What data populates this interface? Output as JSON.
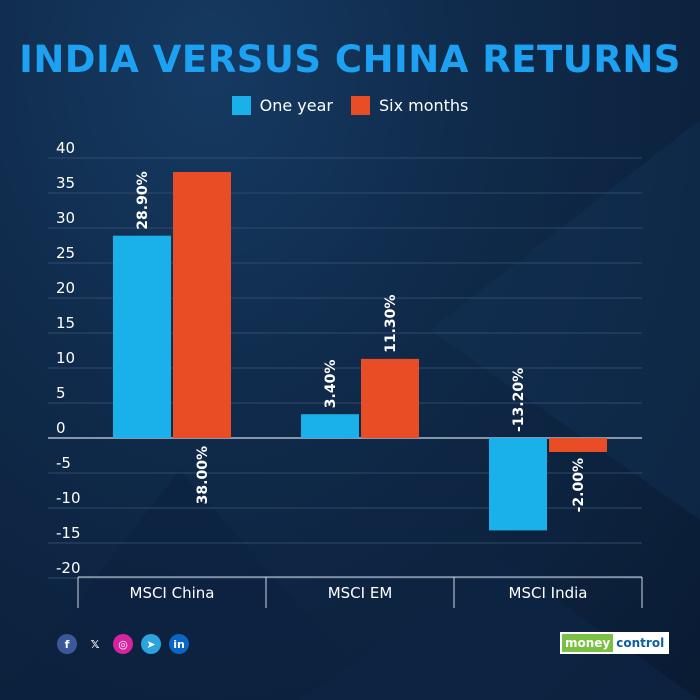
{
  "title": "INDIA VERSUS CHINA RETURNS",
  "colors": {
    "title": "#1da1f2",
    "one_year": "#1ab0ea",
    "six_months": "#e84d26"
  },
  "chart_data": {
    "type": "bar",
    "title": "INDIA VERSUS CHINA RETURNS",
    "categories": [
      "MSCI China",
      "MSCI EM",
      "MSCI India"
    ],
    "series": [
      {
        "name": "One year",
        "values": [
          28.9,
          3.4,
          -13.2
        ],
        "labels": [
          "28.90%",
          "3.40%",
          "-13.20%"
        ]
      },
      {
        "name": "Six months",
        "values": [
          38.0,
          11.3,
          -2.0
        ],
        "labels": [
          "38.00%",
          "11.30%",
          "-2.00%"
        ]
      }
    ],
    "yticks": [
      40,
      35,
      30,
      25,
      20,
      15,
      10,
      5,
      0,
      -5,
      -10,
      -15,
      -20
    ],
    "ylim": [
      -20,
      40
    ],
    "grid": true,
    "legend": "top-center"
  },
  "social": [
    {
      "name": "facebook",
      "glyph": "f",
      "color": "#3b5998"
    },
    {
      "name": "x",
      "glyph": "𝕏",
      "color": "transparent"
    },
    {
      "name": "instagram",
      "glyph": "◎",
      "color": "#d6249f"
    },
    {
      "name": "telegram",
      "glyph": "➤",
      "color": "#2aa3df"
    },
    {
      "name": "linkedin",
      "glyph": "in",
      "color": "#0a66c2"
    }
  ],
  "brand": {
    "money": "money",
    "control": "control"
  }
}
